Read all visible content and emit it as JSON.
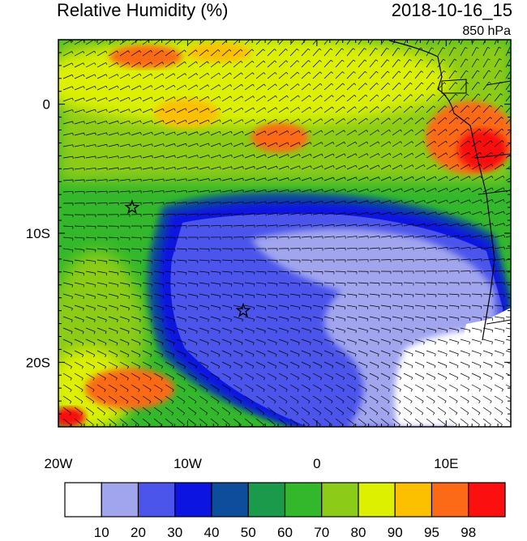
{
  "header": {
    "title": "Relative Humidity (%)",
    "datetime": "2018-10-16_15",
    "level": "850 hPa"
  },
  "map": {
    "x_tick_labels": [
      "20W",
      "10W",
      "0",
      "10E"
    ],
    "y_tick_labels": [
      "0",
      "10S",
      "20S"
    ],
    "lon_range": [
      -20,
      15
    ],
    "lat_range": [
      -25,
      5
    ],
    "markers": [
      {
        "symbol": "star",
        "lon": -14.3,
        "lat": -8.0
      },
      {
        "symbol": "star",
        "lon": -5.7,
        "lat": -16.0
      }
    ]
  },
  "colorbar": {
    "labels": [
      "10",
      "20",
      "30",
      "40",
      "50",
      "60",
      "70",
      "80",
      "90",
      "95",
      "98"
    ],
    "colors": [
      "#ffffff",
      "#a0a5ee",
      "#4b55ec",
      "#0b14e0",
      "#0e4c9c",
      "#1a9a4a",
      "#33b82c",
      "#8ccc18",
      "#dcf000",
      "#fcc000",
      "#fc6a18",
      "#fc0f0f"
    ]
  }
}
